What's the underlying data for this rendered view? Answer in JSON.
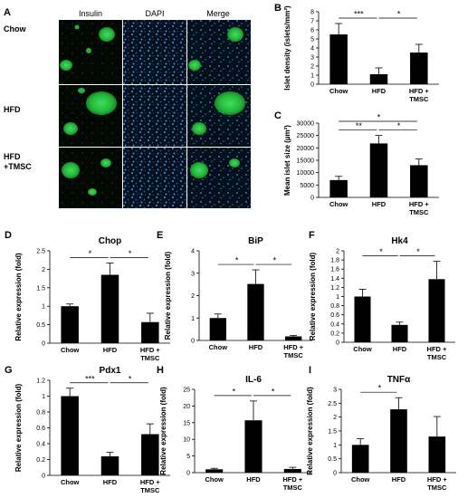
{
  "micrograph": {
    "panel_letter": "A",
    "column_labels": [
      "Insulin",
      "DAPI",
      "Merge"
    ],
    "row_labels": [
      "Chow",
      "HFD",
      "HFD\n+TMSC"
    ],
    "colors": {
      "insulin": "#22c03a",
      "dapi": "#2b7fd0",
      "background": "#050810"
    }
  },
  "chart_data": [
    {
      "type": "bar",
      "panel_letter": "B",
      "title": "",
      "categories": [
        "Chow",
        "HFD",
        "HFD +\nTMSC"
      ],
      "values": [
        5.5,
        1.1,
        3.5
      ],
      "errors": [
        1.2,
        0.7,
        0.9
      ],
      "ylabel": "Islet density (islets/mm²)",
      "xlabel": "",
      "ylim": [
        0,
        8
      ],
      "yticks": [
        0,
        1,
        2,
        3,
        4,
        5,
        6,
        7,
        8
      ],
      "significance": [
        {
          "from": 0,
          "to": 1,
          "label": "***",
          "level": 0
        },
        {
          "from": 1,
          "to": 2,
          "label": "*",
          "level": 0
        }
      ]
    },
    {
      "type": "bar",
      "panel_letter": "C",
      "title": "",
      "categories": [
        "Chow",
        "HFD",
        "HFD +\nTMSC"
      ],
      "values": [
        7000,
        21800,
        13000
      ],
      "errors": [
        1500,
        3200,
        2500
      ],
      "ylabel": "Mean islet size (µm²)",
      "xlabel": "",
      "ylim": [
        0,
        30000
      ],
      "yticks": [
        0,
        5000,
        10000,
        15000,
        20000,
        25000,
        30000
      ],
      "significance": [
        {
          "from": 0,
          "to": 1,
          "label": "**",
          "level": 0
        },
        {
          "from": 1,
          "to": 2,
          "label": "*",
          "level": 0
        },
        {
          "from": 0,
          "to": 2,
          "label": "*",
          "level": 1
        }
      ]
    },
    {
      "type": "bar",
      "panel_letter": "D",
      "title": "Chop",
      "categories": [
        "Chow",
        "HFD",
        "HFD +\nTMSC"
      ],
      "values": [
        1.0,
        1.85,
        0.57
      ],
      "errors": [
        0.06,
        0.32,
        0.24
      ],
      "ylabel": "Relative expression (fold)",
      "xlabel": "",
      "ylim": [
        0,
        2.5
      ],
      "yticks": [
        0,
        0.5,
        1,
        1.5,
        2,
        2.5
      ],
      "significance": [
        {
          "from": 0,
          "to": 1,
          "label": "*",
          "level": 0
        },
        {
          "from": 1,
          "to": 2,
          "label": "*",
          "level": 0
        }
      ]
    },
    {
      "type": "bar",
      "panel_letter": "E",
      "title": "BiP",
      "categories": [
        "Chow",
        "HFD",
        "HFD +\nTMSC"
      ],
      "values": [
        1.0,
        2.52,
        0.18
      ],
      "errors": [
        0.18,
        0.63,
        0.04
      ],
      "ylabel": "Relative expression (fold)",
      "xlabel": "",
      "ylim": [
        0,
        4
      ],
      "yticks": [
        0,
        1,
        2,
        3,
        4
      ],
      "significance": [
        {
          "from": 0,
          "to": 1,
          "label": "*",
          "level": 0
        },
        {
          "from": 1,
          "to": 2,
          "label": "*",
          "level": 0
        }
      ]
    },
    {
      "type": "bar",
      "panel_letter": "F",
      "title": "Hk4",
      "categories": [
        "Chow",
        "HFD",
        "HFD +\nTMSC"
      ],
      "values": [
        1.0,
        0.38,
        1.38
      ],
      "errors": [
        0.16,
        0.06,
        0.39
      ],
      "ylabel": "Relative expression (fold)",
      "xlabel": "",
      "ylim": [
        0,
        2
      ],
      "yticks": [
        0,
        0.2,
        0.4,
        0.6,
        0.8,
        1,
        1.2,
        1.4,
        1.6,
        1.8,
        2
      ],
      "significance": [
        {
          "from": 0,
          "to": 1,
          "label": "*",
          "level": 0
        },
        {
          "from": 1,
          "to": 2,
          "label": "*",
          "level": 0
        }
      ]
    },
    {
      "type": "bar",
      "panel_letter": "G",
      "title": "Pdx1",
      "categories": [
        "Chow",
        "HFD",
        "HFD +\nTMSC"
      ],
      "values": [
        1.0,
        0.24,
        0.52
      ],
      "errors": [
        0.1,
        0.05,
        0.13
      ],
      "ylabel": "Relative expression (fold)",
      "xlabel": "",
      "ylim": [
        0,
        1.2
      ],
      "yticks": [
        0,
        0.2,
        0.4,
        0.6,
        0.8,
        1,
        1.2
      ],
      "significance": [
        {
          "from": 0,
          "to": 1,
          "label": "***",
          "level": 0
        },
        {
          "from": 1,
          "to": 2,
          "label": "*",
          "level": 0
        }
      ]
    },
    {
      "type": "bar",
      "panel_letter": "H",
      "title": "IL-6",
      "categories": [
        "Chow",
        "HFD",
        "HFD +\nTMSC"
      ],
      "values": [
        1.0,
        15.7,
        1.1
      ],
      "errors": [
        0.3,
        5.8,
        0.5
      ],
      "ylabel": "Relative expression (fold)",
      "xlabel": "",
      "ylim": [
        0,
        25
      ],
      "yticks": [
        0,
        5,
        10,
        15,
        20,
        25
      ],
      "significance": [
        {
          "from": 0,
          "to": 1,
          "label": "*",
          "level": 0
        },
        {
          "from": 1,
          "to": 2,
          "label": "*",
          "level": 0
        }
      ]
    },
    {
      "type": "bar",
      "panel_letter": "I",
      "title": "TNFα",
      "categories": [
        "Chow",
        "HFD",
        "HFD +\nTMSC"
      ],
      "values": [
        1.0,
        2.28,
        1.3
      ],
      "errors": [
        0.22,
        0.42,
        0.72
      ],
      "ylabel": "Relative expression (fold)",
      "xlabel": "",
      "ylim": [
        0,
        3
      ],
      "yticks": [
        0,
        0.5,
        1,
        1.5,
        2,
        2.5,
        3
      ],
      "significance": [
        {
          "from": 0,
          "to": 1,
          "label": "*",
          "level": 0
        }
      ]
    }
  ]
}
